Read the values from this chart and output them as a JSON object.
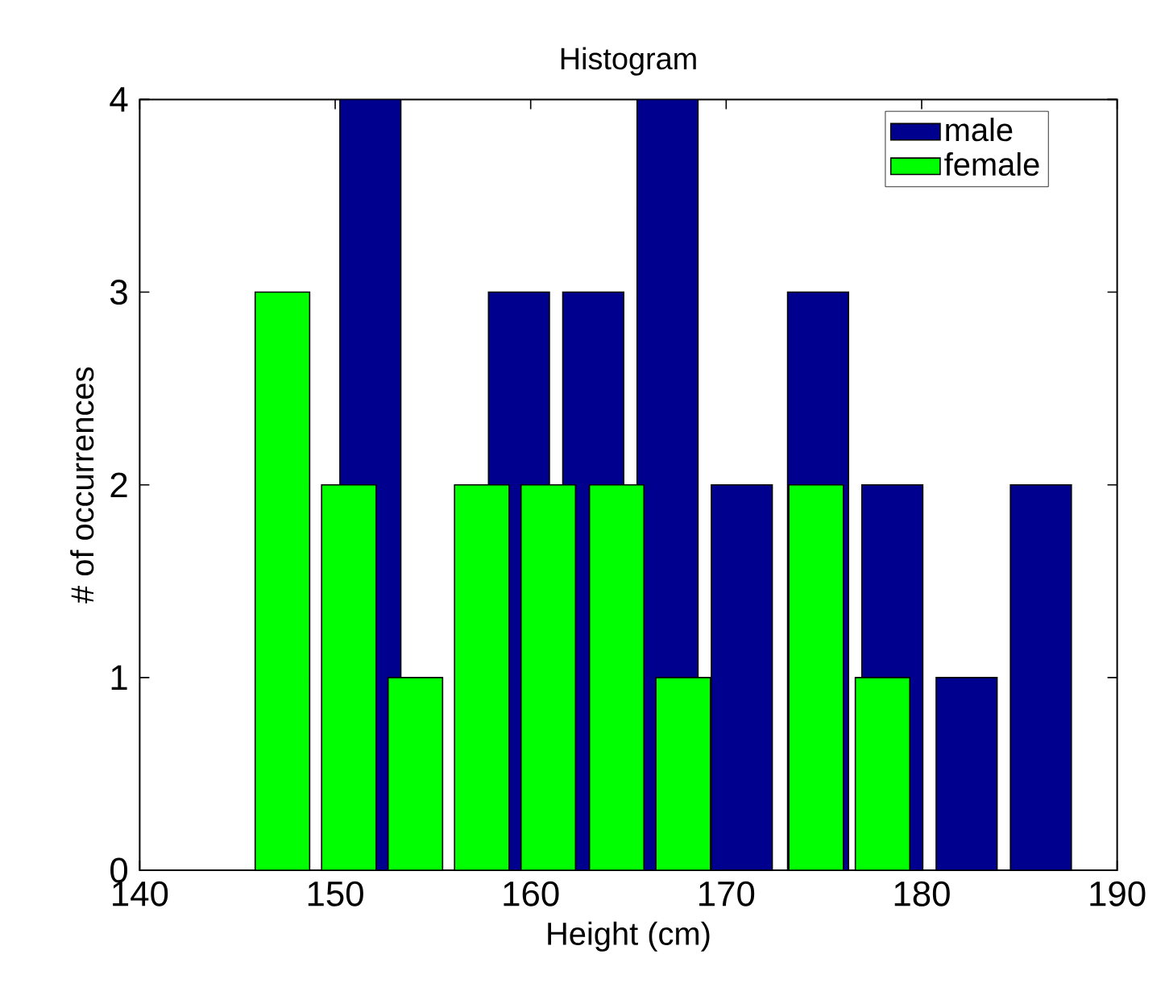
{
  "chart_data": {
    "type": "bar",
    "title": "Histogram",
    "xlabel": "Height (cm)",
    "ylabel": "# of occurrences",
    "series": [
      {
        "name": "male",
        "color": "#00008f",
        "x": [
          151.8,
          155.6,
          159.4,
          163.2,
          167.0,
          170.8,
          174.7,
          178.5,
          182.3,
          186.1
        ],
        "values": [
          4,
          0,
          3,
          3,
          4,
          2,
          3,
          2,
          1,
          2
        ]
      },
      {
        "name": "female",
        "color": "#00ff00",
        "x": [
          147.3,
          150.7,
          154.1,
          157.5,
          160.9,
          164.4,
          167.8,
          171.2,
          174.6,
          178.0
        ],
        "values": [
          3,
          2,
          1,
          2,
          2,
          2,
          1,
          0,
          2,
          1
        ]
      }
    ],
    "xlim": [
      140,
      190
    ],
    "ylim": [
      0,
      4
    ],
    "xticks": [
      140,
      150,
      160,
      170,
      180,
      190
    ],
    "yticks": [
      0,
      1,
      2,
      3,
      4
    ],
    "grid": false,
    "legend": "top right"
  }
}
